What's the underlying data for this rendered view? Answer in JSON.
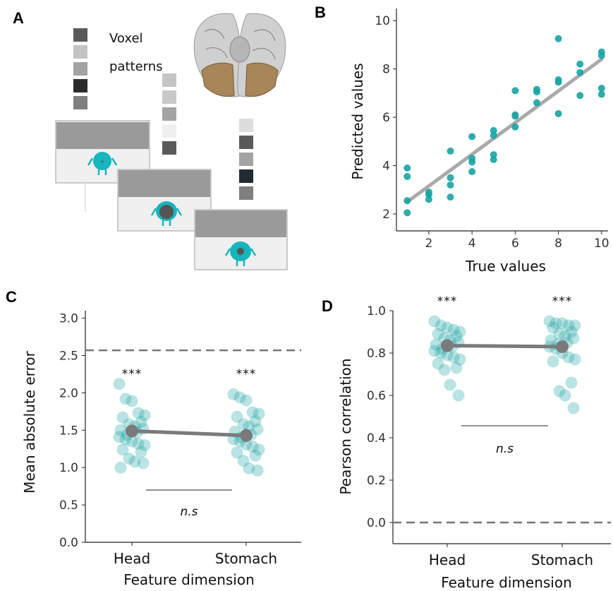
{
  "panels": {
    "a": "A",
    "b": "B",
    "c": "C",
    "d": "D"
  },
  "illustration": {
    "label_line1": "Voxel",
    "label_line2": "patterns",
    "patterns": [
      [
        "#5a5a5a",
        "#c4c4c4",
        "#a3a3a3",
        "#2b2b2b",
        "#7f7f7f"
      ],
      [
        "#c4c4c4",
        "#c8c8c8",
        "#a3a3a3",
        "#efefef",
        "#5a5a5a"
      ],
      [
        "#dcdcdc",
        "#5a5a5a",
        "#a3a3a3",
        "#222a33",
        "#7f7f7f"
      ]
    ]
  },
  "colors": {
    "teal": "#1aa3a3",
    "grey": "#7a7a7a",
    "fitline": "#aaaaaa"
  },
  "chart_data": [
    {
      "panel": "B",
      "type": "scatter",
      "xlabel": "True values",
      "ylabel": "Predicted values",
      "xticks": [
        2,
        4,
        6,
        8,
        10
      ],
      "yticks": [
        2,
        4,
        6,
        8,
        10
      ],
      "xlim": [
        0.5,
        10.3
      ],
      "ylim": [
        1.3,
        10.5
      ],
      "fit_line": {
        "x": [
          1,
          10
        ],
        "y": [
          2.5,
          8.4
        ]
      },
      "points": [
        [
          1,
          3.9
        ],
        [
          1,
          3.55
        ],
        [
          1,
          2.55
        ],
        [
          1,
          2.05
        ],
        [
          2,
          2.9
        ],
        [
          2,
          2.8
        ],
        [
          2,
          2.6
        ],
        [
          3,
          4.6
        ],
        [
          3,
          3.5
        ],
        [
          3,
          3.2
        ],
        [
          3,
          2.7
        ],
        [
          4,
          5.2
        ],
        [
          4,
          4.3
        ],
        [
          4,
          4.15
        ],
        [
          4,
          3.75
        ],
        [
          5,
          5.45
        ],
        [
          5,
          5.25
        ],
        [
          5,
          4.45
        ],
        [
          5,
          4.25
        ],
        [
          6,
          7.1
        ],
        [
          6,
          6.1
        ],
        [
          6,
          6.05
        ],
        [
          6,
          5.6
        ],
        [
          7,
          7.15
        ],
        [
          7,
          7.05
        ],
        [
          7,
          6.6
        ],
        [
          8,
          9.25
        ],
        [
          8,
          7.55
        ],
        [
          8,
          7.45
        ],
        [
          8,
          6.15
        ],
        [
          9,
          8.2
        ],
        [
          9,
          7.85
        ],
        [
          9,
          6.9
        ],
        [
          10,
          8.7
        ],
        [
          10,
          8.55
        ],
        [
          10,
          7.2
        ],
        [
          10,
          6.95
        ]
      ]
    },
    {
      "panel": "C",
      "type": "scatter",
      "xlabel": "Feature dimension",
      "ylabel": "Mean absolute error",
      "categories": [
        "Head",
        "Stomach"
      ],
      "yticks": [
        0.0,
        0.5,
        1.0,
        1.5,
        2.0,
        2.5,
        3.0
      ],
      "ylim": [
        0,
        3.1
      ],
      "chance_line": 2.57,
      "means": [
        1.49,
        1.43
      ],
      "errors": [
        0.08,
        0.09
      ],
      "significance": [
        "***",
        "***"
      ],
      "comparison": "n.s",
      "points": [
        [
          2.12,
          1.92,
          1.89,
          1.73,
          1.7,
          1.67,
          1.61,
          1.58,
          1.55,
          1.52,
          1.5,
          1.47,
          1.44,
          1.41,
          1.38,
          1.35,
          1.32,
          1.3,
          1.24,
          1.21,
          1.12,
          1.08,
          1.06,
          1.0
        ],
        [
          1.98,
          1.94,
          1.9,
          1.74,
          1.72,
          1.68,
          1.62,
          1.58,
          1.55,
          1.51,
          1.48,
          1.44,
          1.41,
          1.38,
          1.35,
          1.31,
          1.28,
          1.24,
          1.2,
          1.16,
          1.09,
          0.99,
          0.96
        ]
      ]
    },
    {
      "panel": "D",
      "type": "scatter",
      "xlabel": "Feature dimension",
      "ylabel": "Pearson correlation",
      "categories": [
        "Head",
        "Stomach"
      ],
      "yticks": [
        0.0,
        0.2,
        0.4,
        0.6,
        0.8,
        1.0
      ],
      "ylim": [
        -0.1,
        1.0
      ],
      "chance_line": 0.0,
      "means": [
        0.835,
        0.83
      ],
      "errors": [
        0.03,
        0.03
      ],
      "significance": [
        "***",
        "***"
      ],
      "comparison": "n.s",
      "points": [
        [
          0.95,
          0.93,
          0.92,
          0.91,
          0.9,
          0.89,
          0.88,
          0.87,
          0.86,
          0.85,
          0.84,
          0.83,
          0.82,
          0.81,
          0.8,
          0.79,
          0.78,
          0.77,
          0.75,
          0.73,
          0.72,
          0.65,
          0.6
        ],
        [
          0.95,
          0.94,
          0.94,
          0.93,
          0.93,
          0.92,
          0.9,
          0.89,
          0.88,
          0.87,
          0.86,
          0.85,
          0.84,
          0.83,
          0.82,
          0.8,
          0.78,
          0.77,
          0.76,
          0.66,
          0.62,
          0.6,
          0.54
        ]
      ]
    }
  ]
}
